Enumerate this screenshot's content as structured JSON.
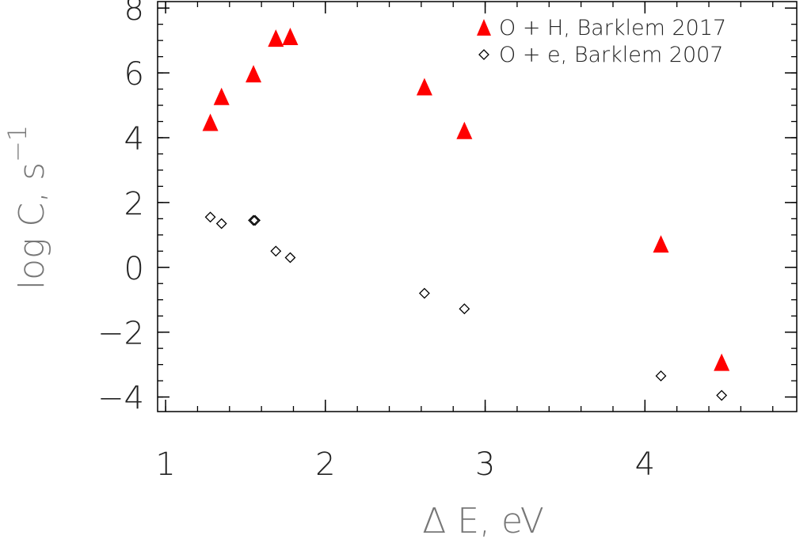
{
  "chart_data": {
    "type": "scatter",
    "title": "",
    "xlabel": "Δ E, eV",
    "ylabel": "log C, s",
    "ylabel_exponent": "−1",
    "xlim": [
      0.95,
      4.95
    ],
    "ylim": [
      -4.45,
      8.2
    ],
    "x_ticks": [
      1,
      2,
      3,
      4
    ],
    "x_tick_labels": [
      "1",
      "2",
      "3",
      "4"
    ],
    "y_ticks": [
      -4,
      -2,
      0,
      2,
      4,
      6,
      8
    ],
    "y_tick_labels": [
      "−4",
      "−2",
      "0",
      "2",
      "4",
      "6",
      "8"
    ],
    "x_minor_step": 0.2,
    "y_minor_step": 0.5,
    "grid": false,
    "legend_position": "top-right",
    "series": [
      {
        "name": "O + H, Barklem 2017",
        "marker": "filled-triangle",
        "color": "#ff0000",
        "x": [
          1.28,
          1.35,
          1.55,
          1.69,
          1.78,
          2.62,
          2.87,
          4.1,
          4.48
        ],
        "y": [
          4.45,
          5.25,
          5.95,
          7.05,
          7.1,
          5.55,
          4.2,
          0.7,
          -2.95
        ]
      },
      {
        "name": "O + e, Barklem 2007",
        "marker": "open-diamond",
        "color": "#000000",
        "x": [
          1.28,
          1.35,
          1.55,
          1.56,
          1.69,
          1.78,
          2.62,
          2.87,
          4.1,
          4.48
        ],
        "y": [
          1.55,
          1.35,
          1.45,
          1.45,
          0.5,
          0.3,
          -0.8,
          -1.28,
          -3.35,
          -3.95
        ]
      }
    ]
  }
}
